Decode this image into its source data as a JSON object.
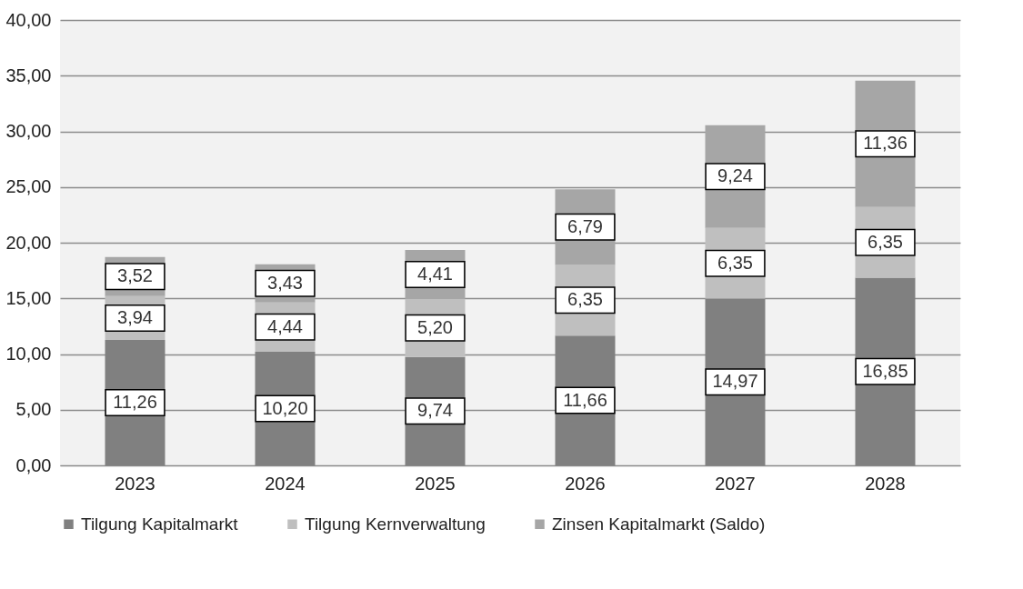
{
  "chart_data": {
    "type": "bar",
    "stacked": true,
    "categories": [
      "2023",
      "2024",
      "2025",
      "2026",
      "2027",
      "2028"
    ],
    "series": [
      {
        "name": "Tilgung Kapitalmarkt",
        "color": "#808080",
        "values": [
          11.26,
          10.2,
          9.74,
          11.66,
          14.97,
          16.85
        ],
        "value_labels": [
          "11,26",
          "10,20",
          "9,74",
          "11,66",
          "14,97",
          "16,85"
        ]
      },
      {
        "name": "Tilgung Kernverwaltung",
        "color": "#bfbfbf",
        "values": [
          3.94,
          4.44,
          5.2,
          6.35,
          6.35,
          6.35
        ],
        "value_labels": [
          "3,94",
          "4,44",
          "5,20",
          "6,35",
          "6,35",
          "6,35"
        ]
      },
      {
        "name": "Zinsen Kapitalmarkt (Saldo)",
        "color": "#a6a6a6",
        "values": [
          3.52,
          3.43,
          4.41,
          6.79,
          9.24,
          11.36
        ],
        "value_labels": [
          "3,52",
          "3,43",
          "4,41",
          "6,79",
          "9,24",
          "11,36"
        ]
      }
    ],
    "ylim": [
      0,
      40
    ],
    "yticks": [
      {
        "value": 0,
        "label": "0,00"
      },
      {
        "value": 5,
        "label": "5,00"
      },
      {
        "value": 10,
        "label": "10,00"
      },
      {
        "value": 15,
        "label": "15,00"
      },
      {
        "value": 20,
        "label": "20,00"
      },
      {
        "value": 25,
        "label": "25,00"
      },
      {
        "value": 30,
        "label": "30,00"
      },
      {
        "value": 35,
        "label": "35,00"
      },
      {
        "value": 40,
        "label": "40,00"
      }
    ],
    "grid": "y",
    "legend": "bottom"
  }
}
